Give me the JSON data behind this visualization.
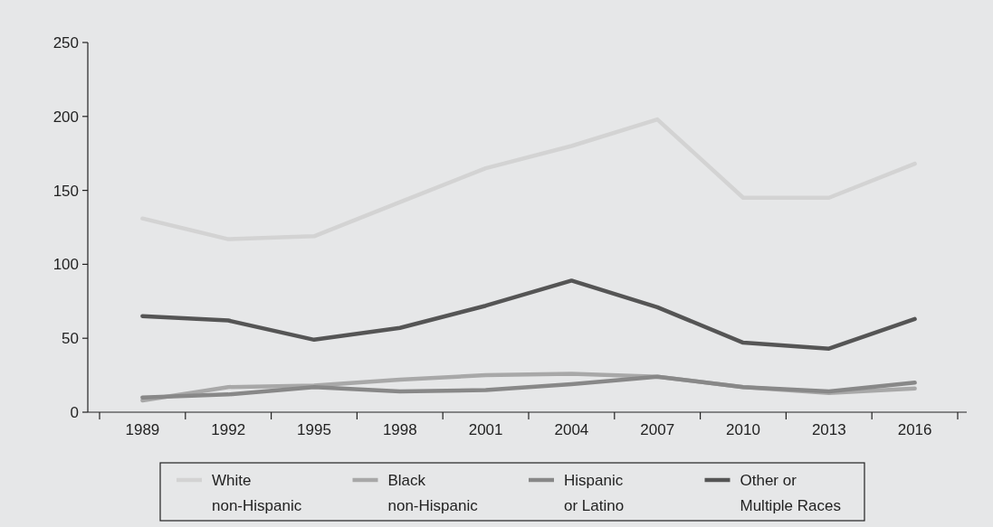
{
  "chart_data": {
    "type": "line",
    "categories": [
      "1989",
      "1992",
      "1995",
      "1998",
      "2001",
      "2004",
      "2007",
      "2010",
      "2013",
      "2016"
    ],
    "series": [
      {
        "name": "White non-Hispanic",
        "color": "#d3d3d3",
        "values": [
          131,
          117,
          119,
          142,
          165,
          180,
          198,
          145,
          145,
          168
        ]
      },
      {
        "name": "Black non-Hispanic",
        "color": "#a8a8a8",
        "values": [
          8,
          17,
          18,
          22,
          25,
          26,
          24,
          17,
          13,
          16
        ]
      },
      {
        "name": "Hispanic or Latino",
        "color": "#888888",
        "values": [
          10,
          12,
          17,
          14,
          15,
          19,
          24,
          17,
          14,
          20
        ]
      },
      {
        "name": "Other or Multiple Races",
        "color": "#555555",
        "values": [
          65,
          62,
          49,
          57,
          72,
          89,
          71,
          47,
          43,
          63
        ]
      }
    ],
    "ylim": [
      0,
      250
    ],
    "yticks": [
      0,
      50,
      100,
      150,
      200,
      250
    ],
    "grid": false,
    "legend": "bottom",
    "marker": "none",
    "line_style": "solid"
  }
}
